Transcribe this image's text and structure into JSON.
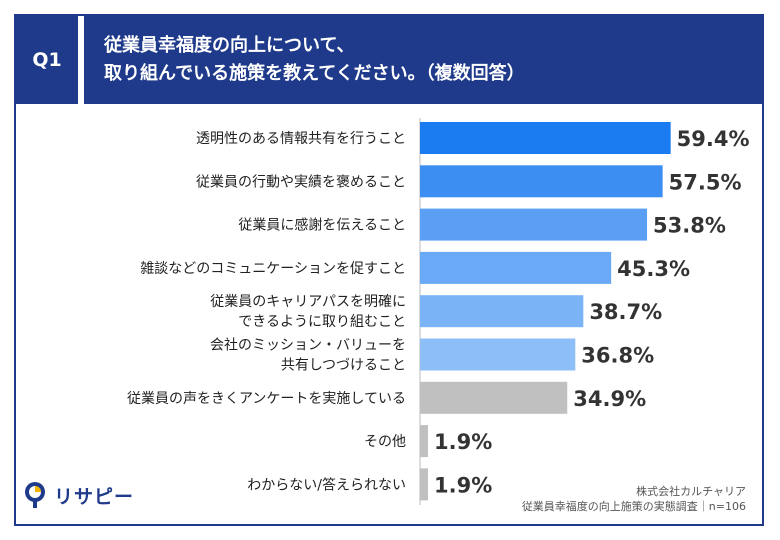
{
  "header": {
    "question_tag": "Q1",
    "title_line1": "従業員幸福度の向上について、",
    "title_line2": "取り組んでいる施策を教えてください。（複数回答）"
  },
  "chart_data": {
    "type": "bar",
    "orientation": "horizontal",
    "categories": [
      [
        "透明性のある情報共有を行うこと"
      ],
      [
        "従業員の行動や実績を褒めること"
      ],
      [
        "従業員に感謝を伝えること"
      ],
      [
        "雑談などのコミュニケーションを促すこと"
      ],
      [
        "従業員のキャリアパスを明確に",
        "できるように取り組むこと"
      ],
      [
        "会社のミッション・バリューを",
        "共有しつづけること"
      ],
      [
        "従業員の声をきくアンケートを実施している"
      ],
      [
        "その他"
      ],
      [
        "わからない/答えられない"
      ]
    ],
    "values": [
      59.4,
      57.5,
      53.8,
      45.3,
      38.7,
      36.8,
      34.9,
      1.9,
      1.9
    ],
    "value_labels": [
      "59.4%",
      "57.5%",
      "53.8%",
      "45.3%",
      "38.7%",
      "36.8%",
      "34.9%",
      "1.9%",
      "1.9%"
    ],
    "colors": [
      "#1a7cf0",
      "#3d8ef2",
      "#5a9ff4",
      "#6aa9f5",
      "#7ab3f6",
      "#8dbef7",
      "#c0c0c0",
      "#c0c0c0",
      "#c0c0c0"
    ],
    "xlim": [
      0,
      100
    ]
  },
  "footer": {
    "logo_text": "リサピー",
    "source_line1": "株式会社カルチャリア",
    "source_line2": "従業員幸福度の向上施策の実態調査｜n=106"
  }
}
